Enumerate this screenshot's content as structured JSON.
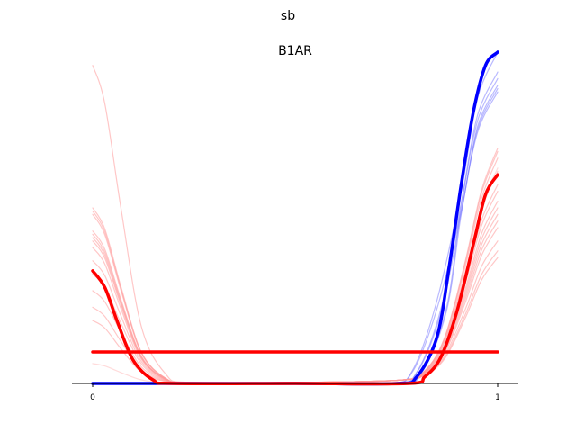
{
  "chart_data": {
    "type": "line",
    "suptitle": "sb",
    "title": "B1AR",
    "xlabel": "",
    "ylabel": "",
    "xlim": [
      -0.05,
      1.05
    ],
    "ylim": [
      0,
      1.0
    ],
    "xticks": [
      0,
      1
    ],
    "xtick_labels": [
      "0",
      "1"
    ],
    "yticks": [],
    "grid": false,
    "legend": "none",
    "colors": {
      "blue": "#0000ff",
      "red": "#ff0000",
      "faint_blue": "#8080ff",
      "faint_red": "#ff9999"
    },
    "faint_blue_end_values": [
      1.0,
      0.94,
      0.92,
      0.9,
      0.89,
      0.88
    ],
    "faint_red_end_values": [
      0.71,
      0.7,
      0.68,
      0.64,
      0.6,
      0.58,
      0.55,
      0.53,
      0.51,
      0.49,
      0.47,
      0.43,
      0.4,
      0.38,
      0.65
    ],
    "faint_red_start_values": [
      0.96,
      0.53,
      0.52,
      0.51,
      0.46,
      0.45,
      0.44,
      0.43,
      0.41,
      0.37,
      0.33,
      0.28,
      0.23,
      0.19,
      0.06
    ],
    "series": [
      {
        "color": "blue",
        "x": [
          0.0,
          0.2,
          0.5,
          0.75,
          0.8,
          0.85,
          0.88,
          0.91,
          0.94,
          0.97,
          1.0
        ],
        "values": [
          0.0,
          0.0,
          0.0,
          0.0,
          0.02,
          0.14,
          0.35,
          0.6,
          0.82,
          0.96,
          1.0
        ]
      },
      {
        "color": "red",
        "x": [
          0.0,
          0.03,
          0.06,
          0.1,
          0.15,
          0.2,
          0.5,
          0.78,
          0.82,
          0.86,
          0.9,
          0.94,
          0.97,
          1.0
        ],
        "values": [
          0.34,
          0.29,
          0.19,
          0.07,
          0.01,
          0.0,
          0.0,
          0.0,
          0.02,
          0.08,
          0.22,
          0.42,
          0.57,
          0.63
        ]
      },
      {
        "color": "red",
        "x": [
          0.0,
          1.0
        ],
        "values": [
          0.095,
          0.095
        ]
      }
    ]
  }
}
